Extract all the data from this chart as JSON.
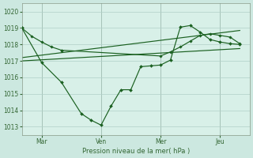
{
  "bg_color": "#cce8e0",
  "plot_bg_color": "#d8f0e8",
  "grid_color": "#b0d0c8",
  "line_color": "#1a6020",
  "ylabel": "Pression niveau de la mer( hPa )",
  "ylim": [
    1012.5,
    1020.5
  ],
  "yticks": [
    1013,
    1014,
    1015,
    1016,
    1017,
    1018,
    1019,
    1020
  ],
  "xtick_labels": [
    "Mar",
    "Ven",
    "Mer",
    "Jeu"
  ],
  "xtick_positions": [
    1,
    4,
    7,
    10
  ],
  "xmin": 0,
  "xmax": 11.5,
  "line1_x": [
    0,
    0.5,
    1.0,
    1.5,
    2.0
  ],
  "line1_y": [
    1019.0,
    1018.5,
    1018.15,
    1017.85,
    1017.65
  ],
  "line2_x": [
    0,
    1,
    2,
    3,
    3.5,
    4,
    4.5,
    5,
    5.5,
    6,
    6.5,
    7,
    7.5,
    8,
    8.5,
    9,
    9.5,
    10,
    10.5,
    11
  ],
  "line2_y": [
    1019.0,
    1016.9,
    1015.7,
    1013.8,
    1013.4,
    1013.1,
    1014.25,
    1015.25,
    1015.25,
    1016.65,
    1016.7,
    1016.75,
    1017.05,
    1019.05,
    1019.15,
    1018.75,
    1018.3,
    1018.15,
    1018.05,
    1018.0
  ],
  "line3_x": [
    0,
    11
  ],
  "line3_y": [
    1017.0,
    1017.75
  ],
  "line4_x": [
    0,
    11
  ],
  "line4_y": [
    1017.2,
    1018.85
  ],
  "line5_x": [
    2,
    7,
    7.5,
    8,
    8.5,
    9,
    9.5,
    10,
    10.5,
    11
  ],
  "line5_y": [
    1017.65,
    1017.3,
    1017.55,
    1017.85,
    1018.2,
    1018.55,
    1018.65,
    1018.55,
    1018.45,
    1018.05
  ]
}
